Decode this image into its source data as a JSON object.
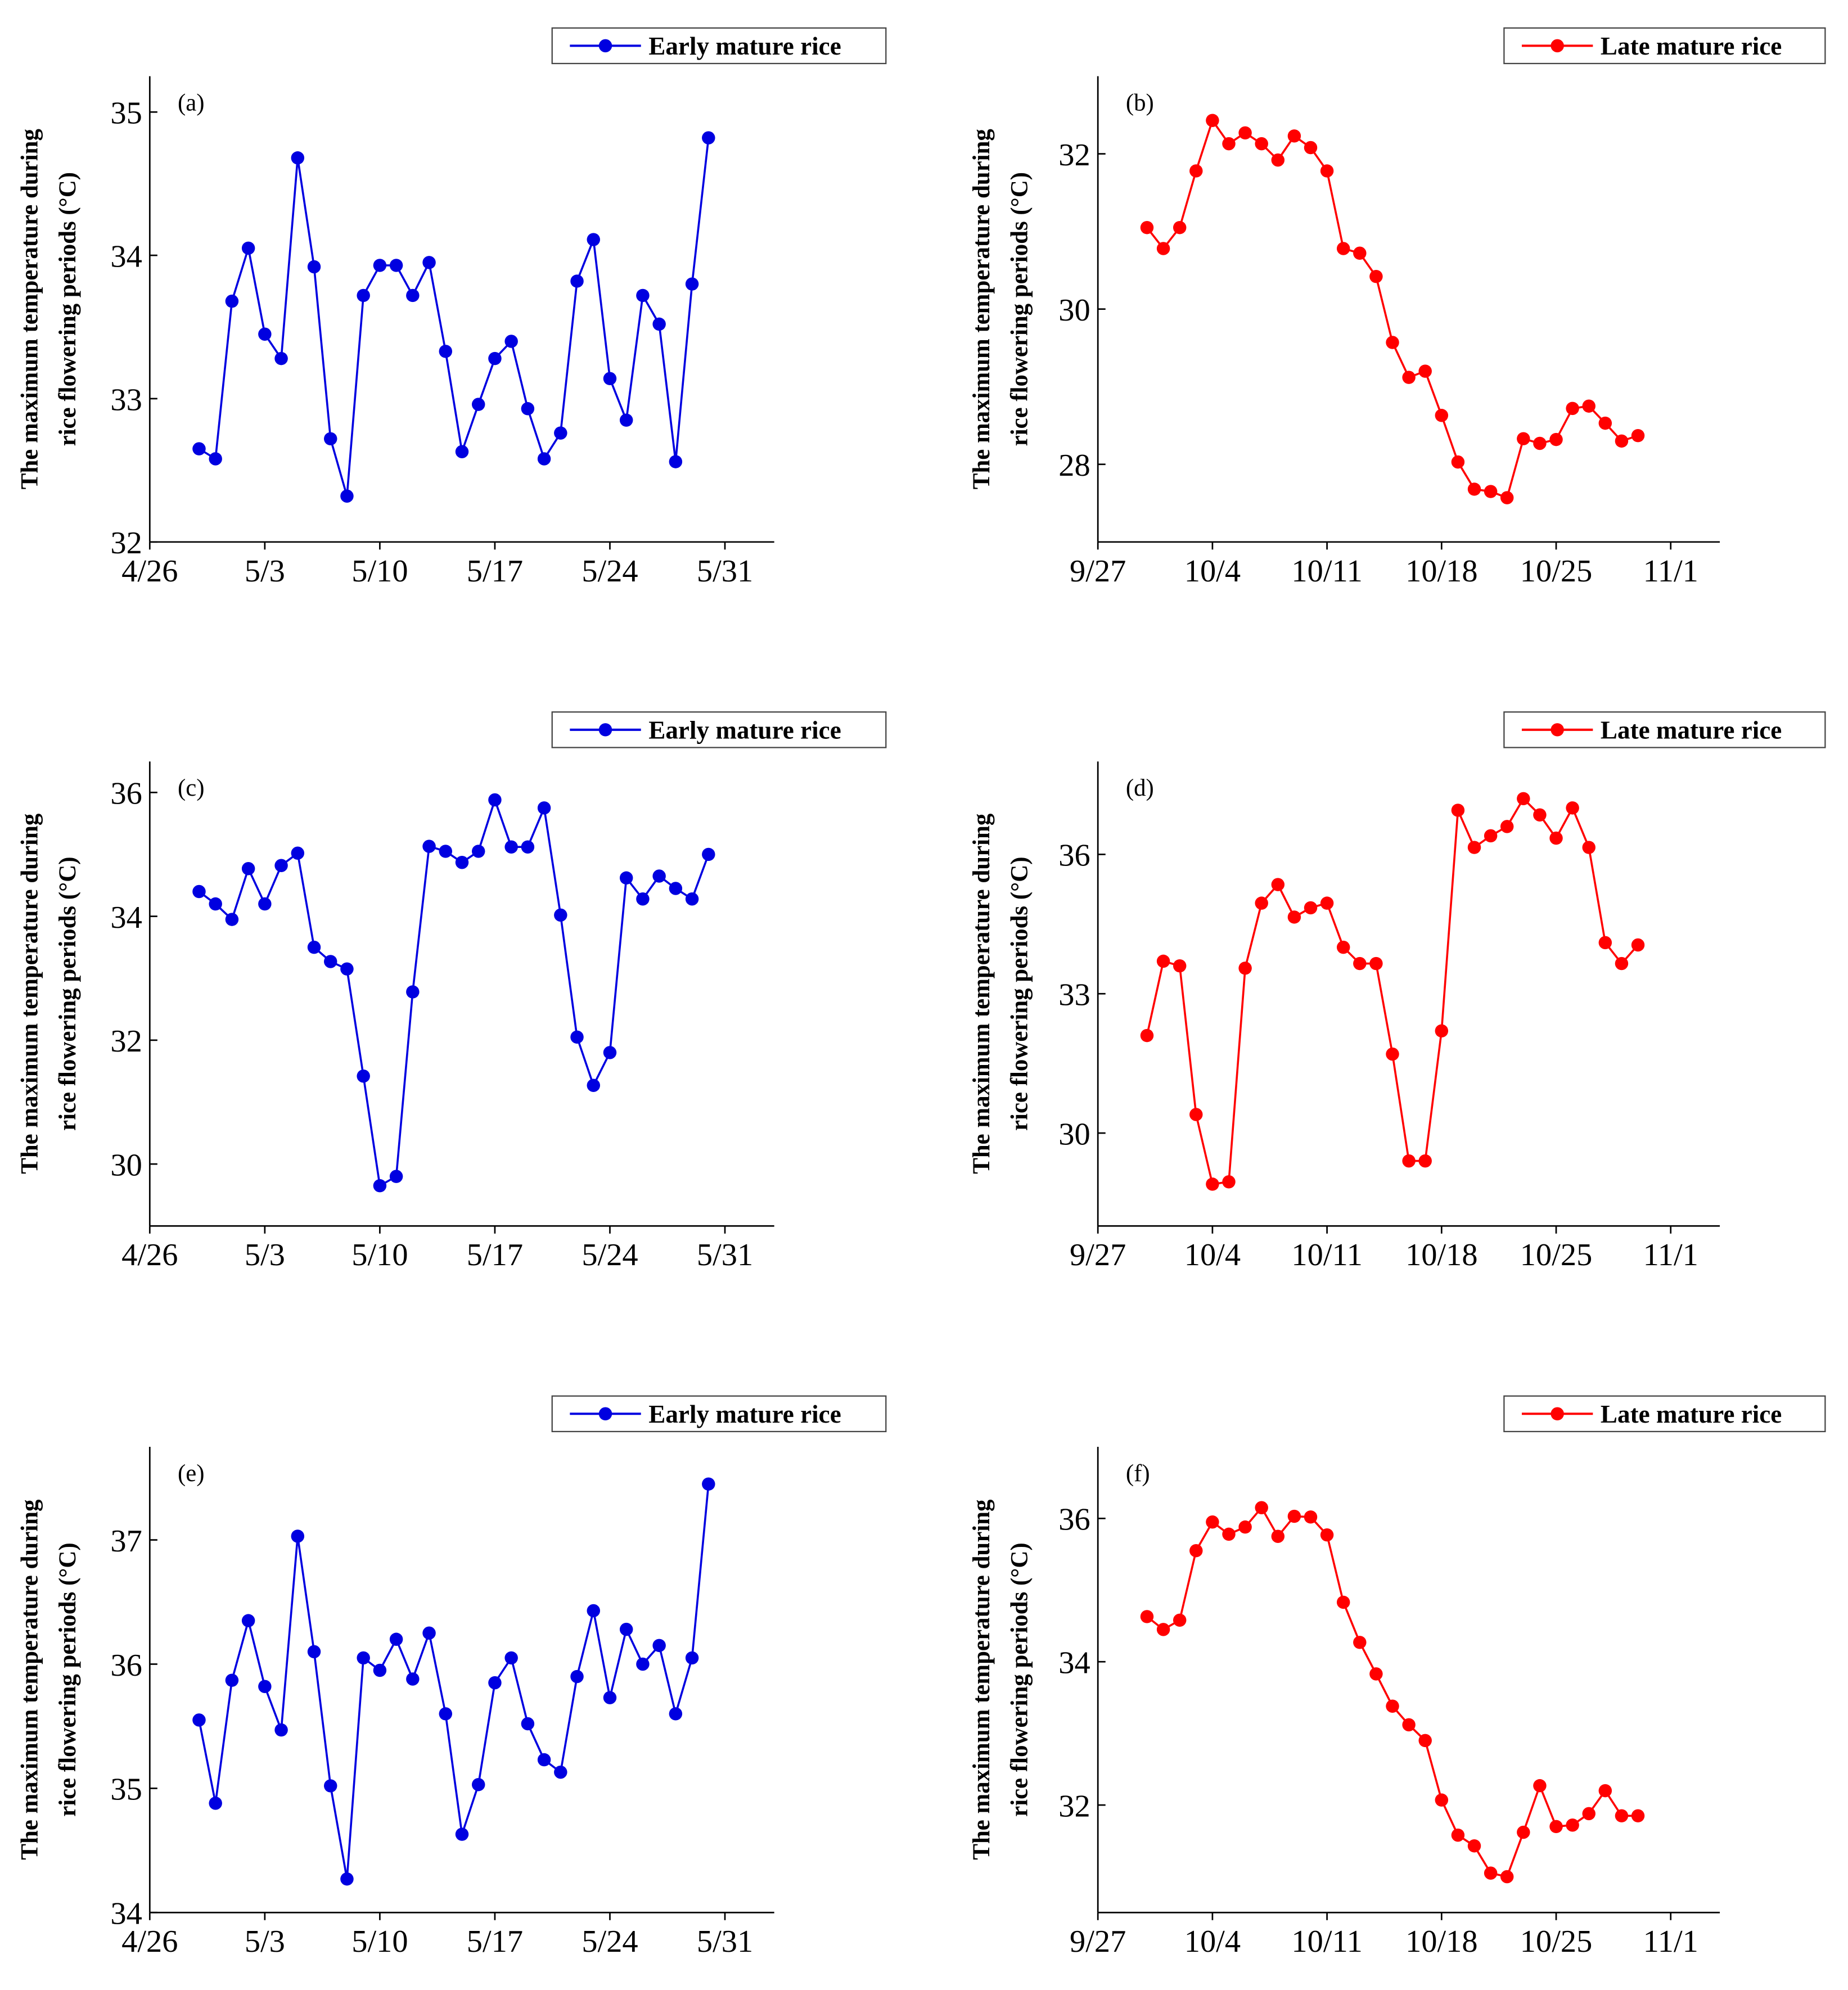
{
  "chart_data": [
    {
      "type": "line",
      "panel_label": "(a)",
      "ylabel": [
        "The maximum temperature during",
        "rice flowering periods (°C)"
      ],
      "x": [
        "4/29",
        "4/30",
        "5/1",
        "5/2",
        "5/3",
        "5/4",
        "5/5",
        "5/6",
        "5/7",
        "5/8",
        "5/9",
        "5/10",
        "5/11",
        "5/12",
        "5/13",
        "5/14",
        "5/15",
        "5/16",
        "5/17",
        "5/18",
        "5/19",
        "5/20",
        "5/21",
        "5/22",
        "5/23",
        "5/24",
        "5/25",
        "5/26",
        "5/27",
        "5/28",
        "5/29",
        "5/30"
      ],
      "series": [
        {
          "name": "Early mature rice",
          "color": "#0000e0",
          "values": [
            32.65,
            32.58,
            33.68,
            34.05,
            33.45,
            33.28,
            34.68,
            33.92,
            32.72,
            32.32,
            33.72,
            33.93,
            33.93,
            33.72,
            33.95,
            33.33,
            32.63,
            32.96,
            33.28,
            33.4,
            32.93,
            32.58,
            32.76,
            33.82,
            34.11,
            33.14,
            32.85,
            33.72,
            33.52,
            32.56,
            33.8,
            34.82
          ]
        }
      ],
      "xlim": [
        "4/26",
        "6/3"
      ],
      "xticks": [
        "4/26",
        "5/3",
        "5/10",
        "5/17",
        "5/24",
        "5/31"
      ],
      "ylim": [
        32,
        35.25
      ],
      "yticks": [
        32,
        33,
        34,
        35
      ]
    },
    {
      "type": "line",
      "panel_label": "(b)",
      "ylabel": [
        "The maximum temperature during",
        "rice flowering periods (°C)"
      ],
      "x": [
        "9/30",
        "10/1",
        "10/2",
        "10/3",
        "10/4",
        "10/5",
        "10/6",
        "10/7",
        "10/8",
        "10/9",
        "10/10",
        "10/11",
        "10/12",
        "10/13",
        "10/14",
        "10/15",
        "10/16",
        "10/17",
        "10/18",
        "10/19",
        "10/20",
        "10/21",
        "10/22",
        "10/23",
        "10/24",
        "10/25",
        "10/26",
        "10/27",
        "10/28",
        "10/29",
        "10/30"
      ],
      "series": [
        {
          "name": "Late mature rice",
          "color": "#ff0000",
          "values": [
            31.05,
            30.78,
            31.05,
            31.78,
            32.43,
            32.13,
            32.27,
            32.13,
            31.92,
            32.23,
            32.08,
            31.78,
            30.78,
            30.72,
            30.42,
            29.57,
            29.12,
            29.2,
            28.63,
            28.03,
            27.68,
            27.65,
            27.57,
            28.33,
            28.27,
            28.32,
            28.72,
            28.75,
            28.53,
            28.3,
            28.37
          ]
        }
      ],
      "xlim": [
        "9/27",
        "11/4"
      ],
      "xticks": [
        "9/27",
        "10/4",
        "10/11",
        "10/18",
        "10/25",
        "11/1"
      ],
      "ylim": [
        27,
        33
      ],
      "yticks": [
        28,
        30,
        32
      ]
    },
    {
      "type": "line",
      "panel_label": "(c)",
      "ylabel": [
        "The maximum temperature during",
        "rice flowering periods (°C)"
      ],
      "x": [
        "4/29",
        "4/30",
        "5/1",
        "5/2",
        "5/3",
        "5/4",
        "5/5",
        "5/6",
        "5/7",
        "5/8",
        "5/9",
        "5/10",
        "5/11",
        "5/12",
        "5/13",
        "5/14",
        "5/15",
        "5/16",
        "5/17",
        "5/18",
        "5/19",
        "5/20",
        "5/21",
        "5/22",
        "5/23",
        "5/24",
        "5/25",
        "5/26",
        "5/27",
        "5/28",
        "5/29",
        "5/30"
      ],
      "series": [
        {
          "name": "Early mature rice",
          "color": "#0000e0",
          "values": [
            34.4,
            34.2,
            33.95,
            34.77,
            34.2,
            34.82,
            35.02,
            33.5,
            33.27,
            33.15,
            31.42,
            29.65,
            29.8,
            32.78,
            35.13,
            35.05,
            34.87,
            35.05,
            35.88,
            35.12,
            35.12,
            35.75,
            34.02,
            32.05,
            31.27,
            31.8,
            34.62,
            34.28,
            34.65,
            34.45,
            34.28,
            35.0
          ]
        }
      ],
      "xlim": [
        "4/26",
        "6/3"
      ],
      "xticks": [
        "4/26",
        "5/3",
        "5/10",
        "5/17",
        "5/24",
        "5/31"
      ],
      "ylim": [
        29,
        36.5
      ],
      "yticks": [
        30,
        32,
        34,
        36
      ]
    },
    {
      "type": "line",
      "panel_label": "(d)",
      "ylabel": [
        "The maximum temperature during",
        "rice flowering periods (°C)"
      ],
      "x": [
        "9/30",
        "10/1",
        "10/2",
        "10/3",
        "10/4",
        "10/5",
        "10/6",
        "10/7",
        "10/8",
        "10/9",
        "10/10",
        "10/11",
        "10/12",
        "10/13",
        "10/14",
        "10/15",
        "10/16",
        "10/17",
        "10/18",
        "10/19",
        "10/20",
        "10/21",
        "10/22",
        "10/23",
        "10/24",
        "10/25",
        "10/26",
        "10/27",
        "10/28",
        "10/29",
        "10/30"
      ],
      "series": [
        {
          "name": "Late mature rice",
          "color": "#ff0000",
          "values": [
            32.1,
            33.7,
            33.6,
            30.4,
            28.9,
            28.95,
            33.55,
            34.95,
            35.35,
            34.65,
            34.85,
            34.95,
            34.0,
            33.65,
            33.65,
            31.7,
            29.4,
            29.4,
            32.2,
            36.95,
            36.15,
            36.4,
            36.6,
            37.2,
            36.85,
            36.35,
            37.0,
            36.15,
            34.1,
            33.65,
            34.05
          ]
        }
      ],
      "xlim": [
        "9/27",
        "11/4"
      ],
      "xticks": [
        "9/27",
        "10/4",
        "10/11",
        "10/18",
        "10/25",
        "11/1"
      ],
      "ylim": [
        28,
        38
      ],
      "yticks": [
        30,
        33,
        36
      ]
    },
    {
      "type": "line",
      "panel_label": "(e)",
      "ylabel": [
        "The maximum temperature during",
        "rice flowering periods (°C)"
      ],
      "x": [
        "4/29",
        "4/30",
        "5/1",
        "5/2",
        "5/3",
        "5/4",
        "5/5",
        "5/6",
        "5/7",
        "5/8",
        "5/9",
        "5/10",
        "5/11",
        "5/12",
        "5/13",
        "5/14",
        "5/15",
        "5/16",
        "5/17",
        "5/18",
        "5/19",
        "5/20",
        "5/21",
        "5/22",
        "5/23",
        "5/24",
        "5/25",
        "5/26",
        "5/27",
        "5/28",
        "5/29",
        "5/30"
      ],
      "series": [
        {
          "name": "Early mature rice",
          "color": "#0000e0",
          "values": [
            35.55,
            34.88,
            35.87,
            36.35,
            35.82,
            35.47,
            37.03,
            36.1,
            35.02,
            34.27,
            36.05,
            35.95,
            36.2,
            35.88,
            36.25,
            35.6,
            34.63,
            35.03,
            35.85,
            36.05,
            35.52,
            35.23,
            35.13,
            35.9,
            36.43,
            35.73,
            36.28,
            36.0,
            36.15,
            35.6,
            36.05,
            37.45
          ]
        }
      ],
      "xlim": [
        "4/26",
        "6/3"
      ],
      "xticks": [
        "4/26",
        "5/3",
        "5/10",
        "5/17",
        "5/24",
        "5/31"
      ],
      "ylim": [
        34,
        37.75
      ],
      "yticks": [
        34,
        35,
        36,
        37
      ]
    },
    {
      "type": "line",
      "panel_label": "(f)",
      "ylabel": [
        "The maximum temperature during",
        "rice flowering periods (°C)"
      ],
      "x": [
        "9/30",
        "10/1",
        "10/2",
        "10/3",
        "10/4",
        "10/5",
        "10/6",
        "10/7",
        "10/8",
        "10/9",
        "10/10",
        "10/11",
        "10/12",
        "10/13",
        "10/14",
        "10/15",
        "10/16",
        "10/17",
        "10/18",
        "10/19",
        "10/20",
        "10/21",
        "10/22",
        "10/23",
        "10/24",
        "10/25",
        "10/26",
        "10/27",
        "10/28",
        "10/29",
        "10/30"
      ],
      "series": [
        {
          "name": "Late mature rice",
          "color": "#ff0000",
          "values": [
            34.63,
            34.45,
            34.58,
            35.55,
            35.95,
            35.78,
            35.88,
            36.15,
            35.75,
            36.03,
            36.02,
            35.77,
            34.83,
            34.27,
            33.83,
            33.38,
            33.12,
            32.9,
            32.07,
            31.58,
            31.43,
            31.05,
            31.0,
            31.62,
            32.27,
            31.7,
            31.72,
            31.88,
            32.2,
            31.85,
            31.85
          ]
        }
      ],
      "xlim": [
        "9/27",
        "11/4"
      ],
      "xticks": [
        "9/27",
        "10/4",
        "10/11",
        "10/18",
        "10/25",
        "11/1"
      ],
      "ylim": [
        30.5,
        37
      ],
      "yticks": [
        32,
        34,
        36
      ]
    }
  ]
}
